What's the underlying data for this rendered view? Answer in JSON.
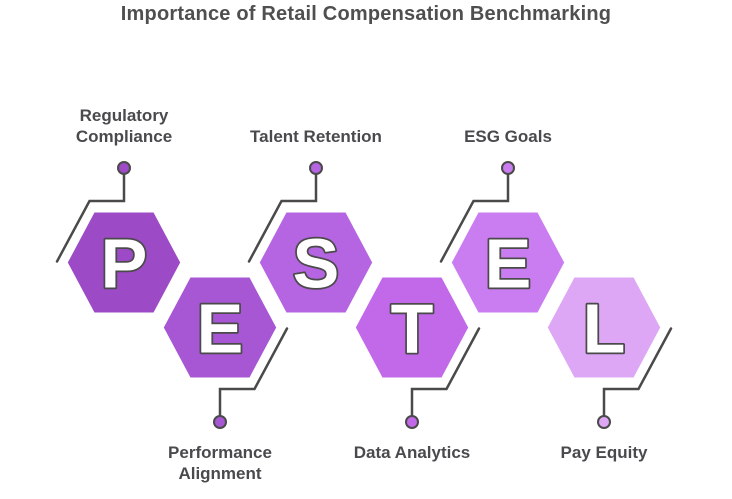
{
  "title": "Importance of Retail Compensation Benchmarking",
  "acronym": "PESTEL",
  "colors": {
    "background": "#ffffff",
    "connector": "#4a4a4a",
    "letter_fill": "#ffffff",
    "letter_outline": "#4a4a4a",
    "label_text": "#4a4a4e",
    "title_text": "#4f4f4f",
    "hex_gap": "#ffffff"
  },
  "hexagons": [
    {
      "letter": "P",
      "label": "Regulatory Compliance",
      "label_lines": [
        "Regulatory",
        "Compliance"
      ],
      "label_position": "top",
      "color": "#9c4ac5"
    },
    {
      "letter": "E",
      "label": "Performance Alignment",
      "label_lines": [
        "Performance",
        "Alignment"
      ],
      "label_position": "bottom",
      "color": "#a757d3"
    },
    {
      "letter": "S",
      "label": "Talent Retention",
      "label_lines": [
        "Talent Retention"
      ],
      "label_position": "top",
      "color": "#b564e2"
    },
    {
      "letter": "T",
      "label": "Data Analytics",
      "label_lines": [
        "Data Analytics"
      ],
      "label_position": "bottom",
      "color": "#c269ea"
    },
    {
      "letter": "E",
      "label": "ESG Goals",
      "label_lines": [
        "ESG Goals"
      ],
      "label_position": "top",
      "color": "#ca7df0"
    },
    {
      "letter": "L",
      "label": "Pay Equity",
      "label_lines": [
        "Pay Equity"
      ],
      "label_position": "bottom",
      "color": "#dda7f6"
    }
  ]
}
